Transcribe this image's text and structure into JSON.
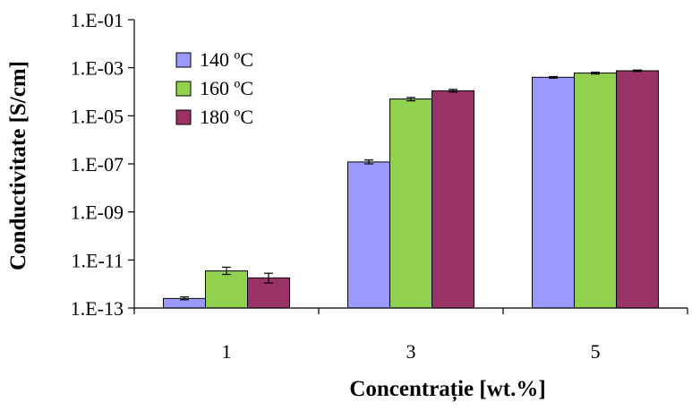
{
  "chart_data": {
    "type": "bar",
    "xlabel": "Concentrație [wt.%]",
    "ylabel": "Conductivitate [S/cm]",
    "yscale": "log",
    "ylim": [
      1e-13,
      0.1
    ],
    "yticks": [
      {
        "value": 1e-13,
        "label": "1.E-13"
      },
      {
        "value": 1e-11,
        "label": "1.E-11"
      },
      {
        "value": 1e-09,
        "label": "1.E-09"
      },
      {
        "value": 1e-07,
        "label": "1.E-07"
      },
      {
        "value": 1e-05,
        "label": "1.E-05"
      },
      {
        "value": 0.001,
        "label": "1.E-03"
      },
      {
        "value": 0.1,
        "label": "1.E-01"
      }
    ],
    "categories": [
      "1",
      "3",
      "5"
    ],
    "legend_position": "top-left",
    "grid": false,
    "series": [
      {
        "name": "140 ºC",
        "color": "#9999ff",
        "values": [
          2.5e-13,
          1.2e-07,
          0.0004
        ],
        "errors_low": [
          2.2e-13,
          1e-07,
          0.00037
        ],
        "errors_high": [
          2.9e-13,
          1.45e-07,
          0.00043
        ]
      },
      {
        "name": "160 ºC",
        "color": "#92d050",
        "values": [
          3.5e-12,
          5e-05,
          0.0006
        ],
        "errors_low": [
          2.5e-12,
          4.2e-05,
          0.00055
        ],
        "errors_high": [
          5e-12,
          5.8e-05,
          0.00065
        ]
      },
      {
        "name": "180 ºC",
        "color": "#993366",
        "values": [
          1.8e-12,
          0.00011,
          0.00075
        ],
        "errors_low": [
          1.1e-12,
          9.7e-05,
          0.0007
        ],
        "errors_high": [
          2.8e-12,
          0.000125,
          0.0008
        ]
      }
    ]
  }
}
